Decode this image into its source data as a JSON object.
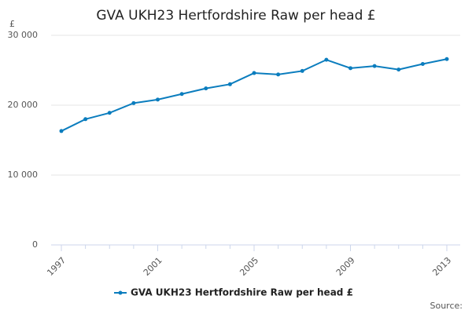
{
  "chart_data": {
    "type": "line",
    "title": "GVA UKH23 Hertfordshire Raw per head £",
    "y_unit": "£",
    "source": "Source:",
    "x": [
      1997,
      1998,
      1999,
      2000,
      2001,
      2002,
      2003,
      2004,
      2005,
      2006,
      2007,
      2008,
      2009,
      2010,
      2011,
      2012,
      2013
    ],
    "xlim": [
      1997,
      2013
    ],
    "xticks": [
      1997,
      2001,
      2005,
      2009,
      2013
    ],
    "ylim": [
      0,
      30000
    ],
    "yticks": [
      0,
      {
        "value": 10000,
        "label": "10 000"
      },
      {
        "value": 20000,
        "label": "20 000"
      },
      {
        "value": 30000,
        "label": "30 000"
      }
    ],
    "grid": true,
    "series": [
      {
        "name": "GVA UKH23 Hertfordshire Raw per head £",
        "color": "#0b7dbe",
        "values": [
          16300,
          18000,
          18900,
          20300,
          20800,
          21600,
          22400,
          23000,
          24600,
          24400,
          24900,
          26500,
          25300,
          25600,
          25100,
          25900,
          26600
        ]
      }
    ]
  }
}
